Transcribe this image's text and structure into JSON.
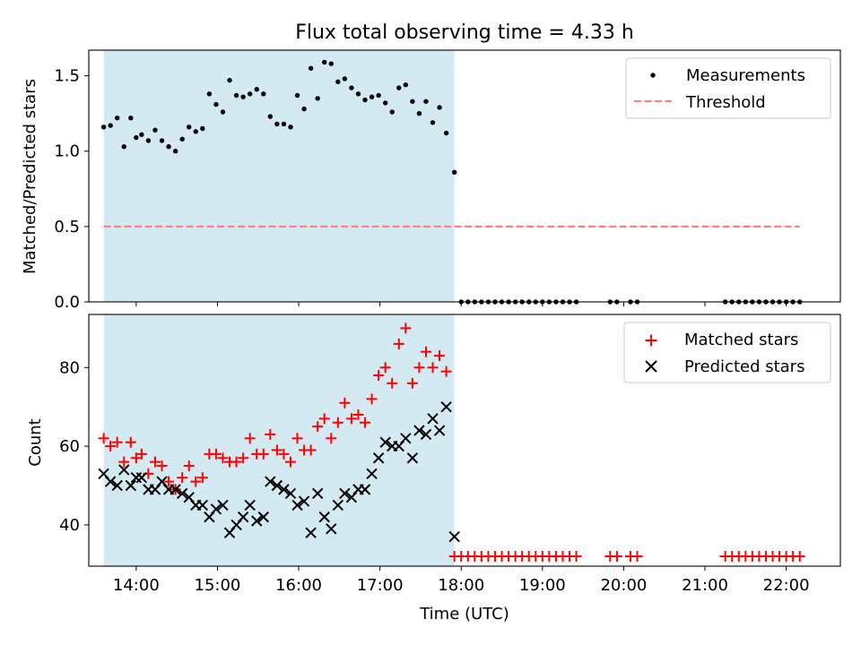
{
  "chart_data": [
    {
      "type": "scatter",
      "title": "Flux total observing time = 4.33 h",
      "xlabel": "",
      "ylabel": "Matched/Predicted stars",
      "x_axis": {
        "type": "time",
        "ticks": [
          "14:00",
          "15:00",
          "16:00",
          "17:00",
          "18:00",
          "19:00",
          "20:00",
          "21:00",
          "22:00"
        ],
        "xlim": [
          "13:25",
          "22:40"
        ]
      },
      "ylim": [
        0,
        1.67
      ],
      "y_ticks": [
        "0.0",
        "0.5",
        "1.0",
        "1.5"
      ],
      "shaded_interval": {
        "start": "13:36",
        "end": "17:55",
        "color": "#add8e6"
      },
      "legend": {
        "placement": "top-right"
      },
      "series": [
        {
          "name": "Measurements",
          "kind": "points",
          "color": "#000000",
          "x": [
            "13:36",
            "13:41",
            "13:46",
            "13:51",
            "13:56",
            "14:00",
            "14:04",
            "14:09",
            "14:14",
            "14:19",
            "14:24",
            "14:29",
            "14:34",
            "14:39",
            "14:44",
            "14:49",
            "14:54",
            "14:59",
            "15:04",
            "15:09",
            "15:14",
            "15:19",
            "15:24",
            "15:29",
            "15:34",
            "15:39",
            "15:44",
            "15:49",
            "15:54",
            "15:59",
            "16:04",
            "16:09",
            "16:14",
            "16:19",
            "16:24",
            "16:29",
            "16:34",
            "16:39",
            "16:44",
            "16:49",
            "16:54",
            "16:59",
            "17:04",
            "17:09",
            "17:14",
            "17:19",
            "17:24",
            "17:29",
            "17:34",
            "17:39",
            "17:44",
            "17:49",
            "17:55",
            "18:00",
            "18:05",
            "18:10",
            "18:15",
            "18:20",
            "18:25",
            "18:30",
            "18:35",
            "18:40",
            "18:45",
            "18:50",
            "18:55",
            "19:00",
            "19:05",
            "19:10",
            "19:15",
            "19:20",
            "19:25",
            "19:50",
            "19:55",
            "20:05",
            "20:10",
            "21:15",
            "21:20",
            "21:25",
            "21:30",
            "21:35",
            "21:40",
            "21:45",
            "21:50",
            "21:55",
            "22:00",
            "22:05",
            "22:10"
          ],
          "y": [
            1.16,
            1.17,
            1.22,
            1.03,
            1.22,
            1.09,
            1.11,
            1.07,
            1.14,
            1.07,
            1.03,
            1.0,
            1.08,
            1.16,
            1.13,
            1.15,
            1.38,
            1.31,
            1.26,
            1.47,
            1.37,
            1.36,
            1.38,
            1.41,
            1.38,
            1.23,
            1.18,
            1.18,
            1.16,
            1.37,
            1.28,
            1.55,
            1.35,
            1.59,
            1.58,
            1.46,
            1.48,
            1.42,
            1.38,
            1.34,
            1.36,
            1.37,
            1.32,
            1.26,
            1.42,
            1.44,
            1.33,
            1.25,
            1.33,
            1.19,
            1.29,
            1.12,
            0.86,
            0,
            0,
            0,
            0,
            0,
            0,
            0,
            0,
            0,
            0,
            0,
            0,
            0,
            0,
            0,
            0,
            0,
            0,
            0,
            0,
            0,
            0,
            0,
            0,
            0,
            0,
            0,
            0,
            0,
            0,
            0,
            0,
            0,
            0
          ]
        },
        {
          "name": "Threshold",
          "kind": "line",
          "style": "dashed",
          "color": "#ff7f7f",
          "x": [
            "13:36",
            "22:10"
          ],
          "y": [
            0.5,
            0.5
          ]
        }
      ]
    },
    {
      "type": "scatter",
      "title": "",
      "xlabel": "Time (UTC)",
      "ylabel": "Count",
      "x_axis": {
        "type": "time",
        "ticks": [
          "14:00",
          "15:00",
          "16:00",
          "17:00",
          "18:00",
          "19:00",
          "20:00",
          "21:00",
          "22:00"
        ],
        "xlim": [
          "13:25",
          "22:40"
        ]
      },
      "ylim": [
        29.5,
        93.5
      ],
      "y_ticks": [
        "40",
        "60",
        "80"
      ],
      "shaded_interval": {
        "start": "13:36",
        "end": "17:55",
        "color": "#add8e6"
      },
      "legend": {
        "placement": "top-right"
      },
      "series": [
        {
          "name": "Matched stars",
          "marker": "plus",
          "color": "#ff0000",
          "x": [
            "13:36",
            "13:41",
            "13:46",
            "13:51",
            "13:56",
            "14:00",
            "14:04",
            "14:09",
            "14:14",
            "14:19",
            "14:24",
            "14:29",
            "14:34",
            "14:39",
            "14:44",
            "14:49",
            "14:54",
            "14:59",
            "15:04",
            "15:09",
            "15:14",
            "15:19",
            "15:24",
            "15:29",
            "15:34",
            "15:39",
            "15:44",
            "15:49",
            "15:54",
            "15:59",
            "16:04",
            "16:09",
            "16:14",
            "16:19",
            "16:24",
            "16:29",
            "16:34",
            "16:39",
            "16:44",
            "16:49",
            "16:54",
            "16:59",
            "17:04",
            "17:09",
            "17:14",
            "17:19",
            "17:24",
            "17:29",
            "17:34",
            "17:39",
            "17:44",
            "17:49",
            "17:55",
            "18:00",
            "18:05",
            "18:10",
            "18:15",
            "18:20",
            "18:25",
            "18:30",
            "18:35",
            "18:40",
            "18:45",
            "18:50",
            "18:55",
            "19:00",
            "19:05",
            "19:10",
            "19:15",
            "19:20",
            "19:25",
            "19:50",
            "19:55",
            "20:05",
            "20:10",
            "21:15",
            "21:20",
            "21:25",
            "21:30",
            "21:35",
            "21:40",
            "21:45",
            "21:50",
            "21:55",
            "22:00",
            "22:05",
            "22:10"
          ],
          "y": [
            62,
            60,
            61,
            56,
            61,
            57,
            58,
            53,
            56,
            55,
            51,
            49,
            52,
            55,
            51,
            52,
            58,
            58,
            57,
            56,
            56,
            57,
            62,
            58,
            58,
            63,
            59,
            58,
            56,
            62,
            59,
            59,
            65,
            67,
            62,
            66,
            71,
            67,
            68,
            66,
            72,
            78,
            80,
            76,
            86,
            90,
            76,
            80,
            84,
            80,
            83,
            79,
            32,
            32,
            32,
            32,
            32,
            32,
            32,
            32,
            32,
            32,
            32,
            32,
            32,
            32,
            32,
            32,
            32,
            32,
            32,
            32,
            32,
            32,
            32,
            32,
            32,
            32,
            32,
            32,
            32,
            32,
            32,
            32,
            32,
            32,
            32
          ]
        },
        {
          "name": "Predicted stars",
          "marker": "x",
          "color": "#000000",
          "x": [
            "13:36",
            "13:41",
            "13:46",
            "13:51",
            "13:56",
            "14:00",
            "14:04",
            "14:09",
            "14:14",
            "14:19",
            "14:24",
            "14:29",
            "14:34",
            "14:39",
            "14:44",
            "14:49",
            "14:54",
            "14:59",
            "15:04",
            "15:09",
            "15:14",
            "15:19",
            "15:24",
            "15:29",
            "15:34",
            "15:39",
            "15:44",
            "15:49",
            "15:54",
            "15:59",
            "16:04",
            "16:09",
            "16:14",
            "16:19",
            "16:24",
            "16:29",
            "16:34",
            "16:39",
            "16:44",
            "16:49",
            "16:54",
            "16:59",
            "17:04",
            "17:09",
            "17:14",
            "17:19",
            "17:24",
            "17:29",
            "17:34",
            "17:39",
            "17:44",
            "17:49",
            "17:55"
          ],
          "y": [
            53,
            51,
            50,
            54,
            50,
            52,
            52,
            49,
            49,
            51,
            49,
            49,
            48,
            47,
            45,
            45,
            42,
            44,
            45,
            38,
            40,
            42,
            45,
            41,
            42,
            51,
            50,
            49,
            48,
            45,
            46,
            38,
            48,
            42,
            39,
            45,
            48,
            47,
            49,
            49,
            53,
            57,
            61,
            60,
            60,
            62,
            57,
            64,
            63,
            67,
            64,
            70,
            37
          ]
        }
      ]
    }
  ]
}
